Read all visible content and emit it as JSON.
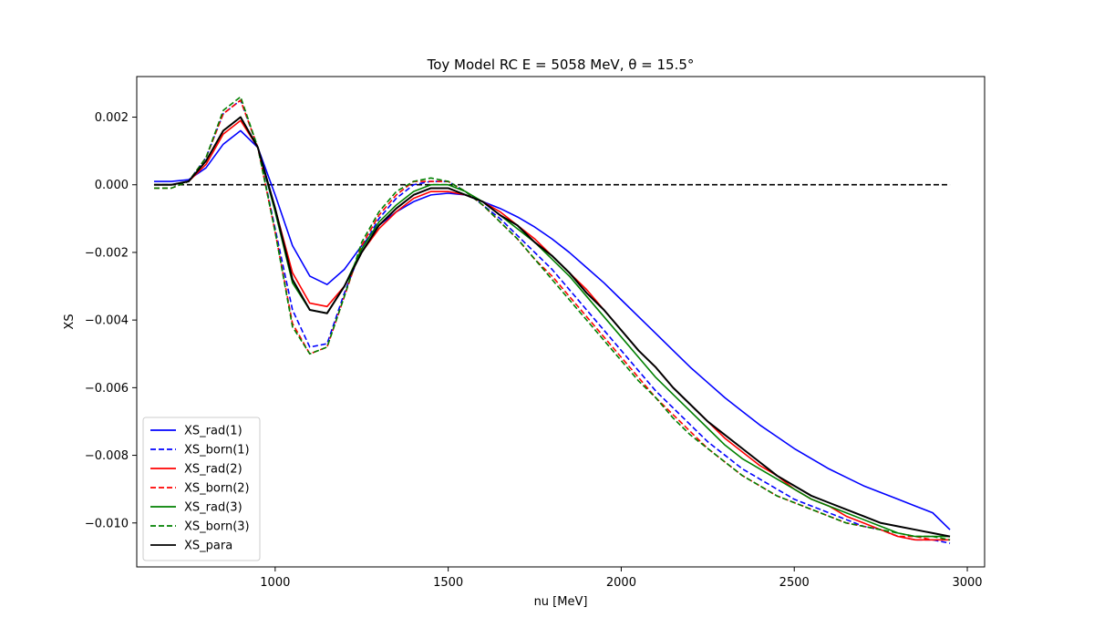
{
  "chart_data": {
    "type": "line",
    "title": "Toy Model RC E = 5058 MeV, θ = 15.5°",
    "xlabel": "nu [MeV]",
    "ylabel": "XS",
    "xlim": [
      600,
      3050
    ],
    "ylim": [
      -0.0113,
      0.0032
    ],
    "xticks": [
      1000,
      1500,
      2000,
      2500,
      3000
    ],
    "xtick_labels": [
      "1000",
      "1500",
      "2000",
      "2500",
      "3000"
    ],
    "yticks": [
      0.002,
      0.0,
      -0.002,
      -0.004,
      -0.006,
      -0.008,
      -0.01
    ],
    "ytick_labels": [
      "0.002",
      "0.000",
      "−0.002",
      "−0.004",
      "−0.006",
      "−0.008",
      "−0.010"
    ],
    "grid": false,
    "legend_position": "lower-left",
    "reference_line": {
      "y": 0.0,
      "x_range": [
        650,
        2950
      ],
      "color": "#000000",
      "style": "dashed"
    },
    "x": [
      650,
      700,
      750,
      800,
      850,
      900,
      950,
      1000,
      1050,
      1100,
      1150,
      1200,
      1250,
      1300,
      1350,
      1400,
      1450,
      1500,
      1550,
      1600,
      1650,
      1700,
      1750,
      1800,
      1850,
      1900,
      1950,
      2000,
      2050,
      2100,
      2150,
      2200,
      2250,
      2300,
      2350,
      2400,
      2450,
      2500,
      2550,
      2600,
      2650,
      2700,
      2750,
      2800,
      2850,
      2900,
      2950
    ],
    "series": [
      {
        "name": "XS_rad(1)",
        "color": "#0000ff",
        "style": "solid",
        "values": [
          0.0001,
          0.0001,
          0.00015,
          0.0005,
          0.0012,
          0.0016,
          0.0011,
          -0.0003,
          -0.0018,
          -0.0027,
          -0.00295,
          -0.0025,
          -0.0018,
          -0.0012,
          -0.0008,
          -0.0005,
          -0.0003,
          -0.00025,
          -0.0003,
          -0.0005,
          -0.0007,
          -0.00095,
          -0.00125,
          -0.0016,
          -0.002,
          -0.00245,
          -0.0029,
          -0.0034,
          -0.0039,
          -0.0044,
          -0.0049,
          -0.0054,
          -0.00585,
          -0.0063,
          -0.0067,
          -0.0071,
          -0.00745,
          -0.0078,
          -0.0081,
          -0.0084,
          -0.00865,
          -0.0089,
          -0.0091,
          -0.0093,
          -0.0095,
          -0.0097,
          -0.0102
        ]
      },
      {
        "name": "XS_born(1)",
        "color": "#0000ff",
        "style": "dashed",
        "values": [
          0.0,
          0.0,
          0.0001,
          0.0008,
          0.0021,
          0.0025,
          0.0011,
          -0.0013,
          -0.0037,
          -0.0048,
          -0.0047,
          -0.0032,
          -0.0019,
          -0.001,
          -0.0004,
          0.0,
          0.0001,
          0.0001,
          -0.0002,
          -0.0006,
          -0.001,
          -0.0015,
          -0.002,
          -0.0025,
          -0.0031,
          -0.0037,
          -0.0043,
          -0.0049,
          -0.0055,
          -0.0061,
          -0.0066,
          -0.0071,
          -0.0076,
          -0.008,
          -0.0084,
          -0.0087,
          -0.009,
          -0.0093,
          -0.0095,
          -0.0097,
          -0.0099,
          -0.0101,
          -0.0102,
          -0.0104,
          -0.0105,
          -0.0105,
          -0.0106
        ]
      },
      {
        "name": "XS_rad(2)",
        "color": "#ff0000",
        "style": "solid",
        "values": [
          0.0,
          0.0,
          0.0001,
          0.0006,
          0.0015,
          0.0019,
          0.0011,
          -0.0007,
          -0.0026,
          -0.0035,
          -0.0036,
          -0.003,
          -0.002,
          -0.0013,
          -0.0008,
          -0.0004,
          -0.0002,
          -0.0002,
          -0.0003,
          -0.0005,
          -0.0008,
          -0.0012,
          -0.0016,
          -0.0021,
          -0.0026,
          -0.0031,
          -0.0037,
          -0.0043,
          -0.0049,
          -0.0054,
          -0.006,
          -0.0065,
          -0.007,
          -0.0075,
          -0.0079,
          -0.0083,
          -0.0086,
          -0.009,
          -0.0093,
          -0.0095,
          -0.0098,
          -0.01,
          -0.0102,
          -0.0104,
          -0.0105,
          -0.0105,
          -0.0105
        ]
      },
      {
        "name": "XS_born(2)",
        "color": "#ff0000",
        "style": "dashed",
        "values": [
          -0.0001,
          -0.0001,
          0.0001,
          0.0008,
          0.0021,
          0.0025,
          0.0011,
          -0.0014,
          -0.0041,
          -0.005,
          -0.0048,
          -0.0033,
          -0.0018,
          -0.0009,
          -0.0003,
          0.0001,
          0.0001,
          0.0001,
          -0.0002,
          -0.0006,
          -0.0011,
          -0.0016,
          -0.0022,
          -0.0027,
          -0.0033,
          -0.0039,
          -0.0045,
          -0.0051,
          -0.0057,
          -0.0063,
          -0.0068,
          -0.0073,
          -0.0078,
          -0.0082,
          -0.0086,
          -0.0089,
          -0.0092,
          -0.0094,
          -0.0096,
          -0.0098,
          -0.01,
          -0.0101,
          -0.0102,
          -0.0104,
          -0.0104,
          -0.0105,
          -0.0105
        ]
      },
      {
        "name": "XS_rad(3)",
        "color": "#008000",
        "style": "solid",
        "values": [
          0.0,
          0.0,
          0.0001,
          0.0007,
          0.0016,
          0.002,
          0.0011,
          -0.0008,
          -0.0029,
          -0.0037,
          -0.0038,
          -0.003,
          -0.0019,
          -0.0011,
          -0.0006,
          -0.0002,
          0.0,
          0.0,
          -0.0002,
          -0.0005,
          -0.0009,
          -0.0013,
          -0.0017,
          -0.0022,
          -0.0027,
          -0.0033,
          -0.0039,
          -0.0045,
          -0.0051,
          -0.0057,
          -0.0062,
          -0.0067,
          -0.0072,
          -0.0077,
          -0.0081,
          -0.0084,
          -0.0087,
          -0.009,
          -0.0093,
          -0.0095,
          -0.0097,
          -0.0099,
          -0.0101,
          -0.0103,
          -0.0104,
          -0.0104,
          -0.0104
        ]
      },
      {
        "name": "XS_born(3)",
        "color": "#008000",
        "style": "dashed",
        "values": [
          -0.0001,
          -0.0001,
          0.0001,
          0.0008,
          0.0022,
          0.0026,
          0.0011,
          -0.0014,
          -0.0042,
          -0.005,
          -0.0048,
          -0.0033,
          -0.0017,
          -0.0008,
          -0.0002,
          0.0001,
          0.0002,
          0.0001,
          -0.0002,
          -0.0006,
          -0.0011,
          -0.0016,
          -0.0022,
          -0.0028,
          -0.0034,
          -0.004,
          -0.0046,
          -0.0052,
          -0.0058,
          -0.0063,
          -0.0069,
          -0.0074,
          -0.0078,
          -0.0082,
          -0.0086,
          -0.0089,
          -0.0092,
          -0.0094,
          -0.0096,
          -0.0098,
          -0.01,
          -0.0101,
          -0.0102,
          -0.0103,
          -0.0104,
          -0.0104,
          -0.0105
        ]
      },
      {
        "name": "XS_para",
        "color": "#000000",
        "style": "solid",
        "values": [
          0.0,
          0.0,
          0.0001,
          0.0007,
          0.0016,
          0.002,
          0.0011,
          -0.0007,
          -0.0028,
          -0.0037,
          -0.0038,
          -0.003,
          -0.002,
          -0.0012,
          -0.0007,
          -0.0003,
          -0.0001,
          -0.0001,
          -0.0003,
          -0.0005,
          -0.0009,
          -0.0012,
          -0.0017,
          -0.0021,
          -0.0026,
          -0.0032,
          -0.0037,
          -0.0043,
          -0.0049,
          -0.0054,
          -0.006,
          -0.0065,
          -0.007,
          -0.0074,
          -0.0078,
          -0.0082,
          -0.0086,
          -0.0089,
          -0.0092,
          -0.0094,
          -0.0096,
          -0.0098,
          -0.01,
          -0.0101,
          -0.0102,
          -0.0103,
          -0.0104
        ]
      }
    ]
  }
}
